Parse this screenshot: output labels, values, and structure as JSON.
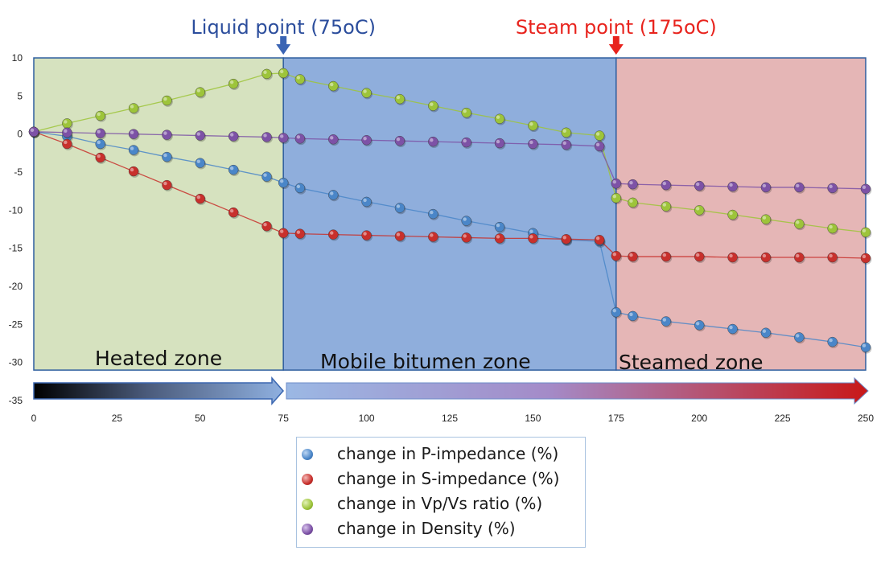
{
  "chart_data": {
    "type": "line",
    "title": "",
    "xlabel": "",
    "ylabel": "",
    "xlim": [
      0,
      250
    ],
    "ylim": [
      -35,
      10
    ],
    "x_ticks": [
      0,
      25,
      50,
      75,
      100,
      125,
      150,
      175,
      200,
      225,
      250
    ],
    "y_ticks": [
      10,
      5,
      0,
      -5,
      -10,
      -15,
      -20,
      -25,
      -30,
      -35
    ],
    "grid": false,
    "legend_position": "bottom-center",
    "series": [
      {
        "name": "change in P-impedance (%)",
        "color": "#4a86c8",
        "points": [
          [
            0,
            0.3
          ],
          [
            10,
            -0.3
          ],
          [
            20,
            -1.3
          ],
          [
            30,
            -2.1
          ],
          [
            40,
            -3
          ],
          [
            50,
            -3.8
          ],
          [
            60,
            -4.7
          ],
          [
            70,
            -5.6
          ],
          [
            75,
            -6.4
          ],
          [
            80,
            -7.1
          ],
          [
            90,
            -8
          ],
          [
            100,
            -8.9
          ],
          [
            110,
            -9.7
          ],
          [
            120,
            -10.5
          ],
          [
            130,
            -11.4
          ],
          [
            140,
            -12.2
          ],
          [
            150,
            -13
          ],
          [
            160,
            -13.9
          ],
          [
            170,
            -14.1
          ],
          [
            175,
            -23.4
          ],
          [
            180,
            -23.9
          ],
          [
            190,
            -24.6
          ],
          [
            200,
            -25.1
          ],
          [
            210,
            -25.6
          ],
          [
            220,
            -26.1
          ],
          [
            230,
            -26.7
          ],
          [
            240,
            -27.3
          ],
          [
            250,
            -28
          ]
        ]
      },
      {
        "name": "change in S-impedance (%)",
        "color": "#c8302c",
        "points": [
          [
            0,
            0.3
          ],
          [
            10,
            -1.3
          ],
          [
            20,
            -3.1
          ],
          [
            30,
            -4.9
          ],
          [
            40,
            -6.7
          ],
          [
            50,
            -8.5
          ],
          [
            60,
            -10.3
          ],
          [
            70,
            -12.1
          ],
          [
            75,
            -13
          ],
          [
            80,
            -13.1
          ],
          [
            90,
            -13.2
          ],
          [
            100,
            -13.3
          ],
          [
            110,
            -13.4
          ],
          [
            120,
            -13.5
          ],
          [
            130,
            -13.6
          ],
          [
            140,
            -13.7
          ],
          [
            150,
            -13.7
          ],
          [
            160,
            -13.8
          ],
          [
            170,
            -13.9
          ],
          [
            175,
            -16
          ],
          [
            180,
            -16.1
          ],
          [
            190,
            -16.1
          ],
          [
            200,
            -16.1
          ],
          [
            210,
            -16.2
          ],
          [
            220,
            -16.2
          ],
          [
            230,
            -16.2
          ],
          [
            240,
            -16.2
          ],
          [
            250,
            -16.3
          ]
        ]
      },
      {
        "name": "change in Vp/Vs ratio (%)",
        "color": "#9dc43a",
        "points": [
          [
            0,
            0.3
          ],
          [
            10,
            1.4
          ],
          [
            20,
            2.4
          ],
          [
            30,
            3.4
          ],
          [
            40,
            4.4
          ],
          [
            50,
            5.5
          ],
          [
            60,
            6.6
          ],
          [
            70,
            7.9
          ],
          [
            75,
            8
          ],
          [
            80,
            7.2
          ],
          [
            90,
            6.3
          ],
          [
            100,
            5.4
          ],
          [
            110,
            4.6
          ],
          [
            120,
            3.7
          ],
          [
            130,
            2.8
          ],
          [
            140,
            2
          ],
          [
            150,
            1.1
          ],
          [
            160,
            0.2
          ],
          [
            170,
            -0.2
          ],
          [
            175,
            -8.4
          ],
          [
            180,
            -9
          ],
          [
            190,
            -9.5
          ],
          [
            200,
            -10
          ],
          [
            210,
            -10.6
          ],
          [
            220,
            -11.2
          ],
          [
            230,
            -11.8
          ],
          [
            240,
            -12.4
          ],
          [
            250,
            -12.9
          ]
        ]
      },
      {
        "name": "change in Density (%)",
        "color": "#7d52a6",
        "points": [
          [
            0,
            0.3
          ],
          [
            10,
            0.2
          ],
          [
            20,
            0.1
          ],
          [
            30,
            0
          ],
          [
            40,
            -0.1
          ],
          [
            50,
            -0.2
          ],
          [
            60,
            -0.3
          ],
          [
            70,
            -0.4
          ],
          [
            75,
            -0.5
          ],
          [
            80,
            -0.6
          ],
          [
            90,
            -0.7
          ],
          [
            100,
            -0.8
          ],
          [
            110,
            -0.9
          ],
          [
            120,
            -1
          ],
          [
            130,
            -1.1
          ],
          [
            140,
            -1.2
          ],
          [
            150,
            -1.3
          ],
          [
            160,
            -1.4
          ],
          [
            170,
            -1.6
          ],
          [
            175,
            -6.5
          ],
          [
            180,
            -6.6
          ],
          [
            190,
            -6.7
          ],
          [
            200,
            -6.8
          ],
          [
            210,
            -6.9
          ],
          [
            220,
            -7
          ],
          [
            230,
            -7
          ],
          [
            240,
            -7.1
          ],
          [
            250,
            -7.2
          ]
        ]
      }
    ],
    "zones": [
      {
        "label": "Heated zone",
        "x_start": 0,
        "x_end": 75,
        "color": "#d6e2bf"
      },
      {
        "label": "Mobile bitumen zone",
        "x_start": 75,
        "x_end": 175,
        "color": "#8faedc"
      },
      {
        "label": "Steamed zone",
        "x_start": 175,
        "x_end": 250,
        "color": "#e5b6b6"
      }
    ],
    "annotations": [
      {
        "text": "Liquid point (75oC)",
        "x": 75,
        "color": "#2b4d9c",
        "arrow_color": "#3a64b4"
      },
      {
        "text": "Steam point (175oC)",
        "x": 175,
        "color": "#e8231d",
        "arrow_color": "#e8231d"
      }
    ]
  }
}
